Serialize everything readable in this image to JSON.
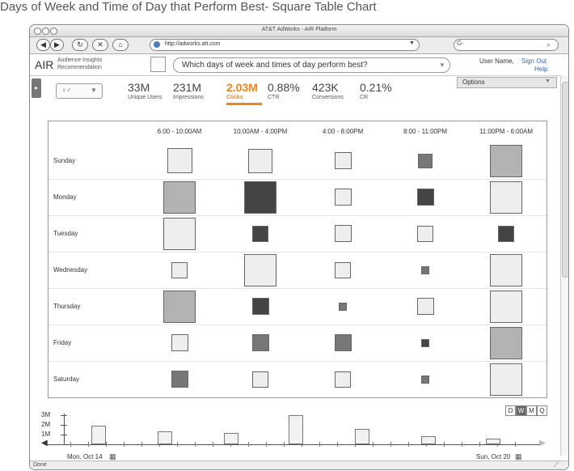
{
  "page_title": "Days of Week and Time of Day that Perform Best- Square Table Chart",
  "window": {
    "title": "AT&T AdWorks - AIR Platform",
    "url": "http://adworks.att.com",
    "nav": {
      "back": "◀",
      "forward": "▶",
      "reload": "↻",
      "stop": "✕",
      "home": "⌂"
    },
    "search_prefix": "G·"
  },
  "app": {
    "name": "AIR",
    "subtitle_line1": "Audience Insights",
    "subtitle_line2": "Recommendation",
    "question": "Which days of week and times of day perform best?",
    "user_name": "User Name,",
    "sign_out": "Sign Out",
    "help": "Help",
    "options": "Options"
  },
  "metrics": [
    {
      "value": "33M",
      "label": "Unique Users",
      "active": false
    },
    {
      "value": "231M",
      "label": "Impressions",
      "active": false
    },
    {
      "value": "2.03M",
      "label": "Clicks",
      "active": true
    },
    {
      "value": "0.88%",
      "label": "CTR",
      "active": false
    },
    {
      "value": "423K",
      "label": "Conversions",
      "active": false
    },
    {
      "value": "0.21%",
      "label": "CR",
      "active": false
    }
  ],
  "chart_data": {
    "type": "table",
    "columns": [
      "6:00 - 10:00AM",
      "10:00AM - 4:00PM",
      "4:00 - 8:00PM",
      "8:00 - 11:00PM",
      "11:00PM - 6:00AM"
    ],
    "rows": [
      "Sunday",
      "Monday",
      "Tuesday",
      "Wednesday",
      "Thursday",
      "Friday",
      "Saturday"
    ],
    "cells": [
      [
        {
          "size": 0.78,
          "shade": "#eeeeee"
        },
        {
          "size": 0.74,
          "shade": "#eeeeee"
        },
        {
          "size": 0.52,
          "shade": "#eeeeee"
        },
        {
          "size": 0.44,
          "shade": "#777777"
        },
        {
          "size": 1.0,
          "shade": "#b3b3b3"
        }
      ],
      [
        {
          "size": 1.0,
          "shade": "#b3b3b3"
        },
        {
          "size": 1.0,
          "shade": "#444444"
        },
        {
          "size": 0.52,
          "shade": "#eeeeee"
        },
        {
          "size": 0.52,
          "shade": "#444444"
        },
        {
          "size": 1.0,
          "shade": "#eeeeee"
        }
      ],
      [
        {
          "size": 1.0,
          "shade": "#eeeeee"
        },
        {
          "size": 0.5,
          "shade": "#444444"
        },
        {
          "size": 0.52,
          "shade": "#eeeeee"
        },
        {
          "size": 0.5,
          "shade": "#eeeeee"
        },
        {
          "size": 0.5,
          "shade": "#444444"
        }
      ],
      [
        {
          "size": 0.5,
          "shade": "#eeeeee"
        },
        {
          "size": 1.0,
          "shade": "#eeeeee"
        },
        {
          "size": 0.5,
          "shade": "#eeeeee"
        },
        {
          "size": 0.26,
          "shade": "#777777"
        },
        {
          "size": 1.0,
          "shade": "#eeeeee"
        }
      ],
      [
        {
          "size": 1.0,
          "shade": "#b3b3b3"
        },
        {
          "size": 0.52,
          "shade": "#444444"
        },
        {
          "size": 0.26,
          "shade": "#777777"
        },
        {
          "size": 0.52,
          "shade": "#eeeeee"
        },
        {
          "size": 1.0,
          "shade": "#eeeeee"
        }
      ],
      [
        {
          "size": 0.52,
          "shade": "#eeeeee"
        },
        {
          "size": 0.52,
          "shade": "#777777"
        },
        {
          "size": 0.52,
          "shade": "#777777"
        },
        {
          "size": 0.26,
          "shade": "#444444"
        },
        {
          "size": 1.0,
          "shade": "#b3b3b3"
        }
      ],
      [
        {
          "size": 0.52,
          "shade": "#777777"
        },
        {
          "size": 0.5,
          "shade": "#eeeeee"
        },
        {
          "size": 0.5,
          "shade": "#eeeeee"
        },
        {
          "size": 0.26,
          "shade": "#777777"
        },
        {
          "size": 1.0,
          "shade": "#eeeeee"
        }
      ]
    ]
  },
  "timeline": {
    "y_ticks": [
      "3M",
      "2M",
      "1M"
    ],
    "y_values": [
      3,
      2,
      1
    ],
    "bars": [
      1.9,
      1.3,
      1.2,
      3.0,
      1.6,
      0.8,
      0.6
    ],
    "date_start": "Mon, Oct 14",
    "date_end": "Sun, Oct 20",
    "granularity": [
      "D",
      "W",
      "M",
      "Q"
    ],
    "selected": "W",
    "calendar_icon": "▦"
  },
  "status": "Done"
}
